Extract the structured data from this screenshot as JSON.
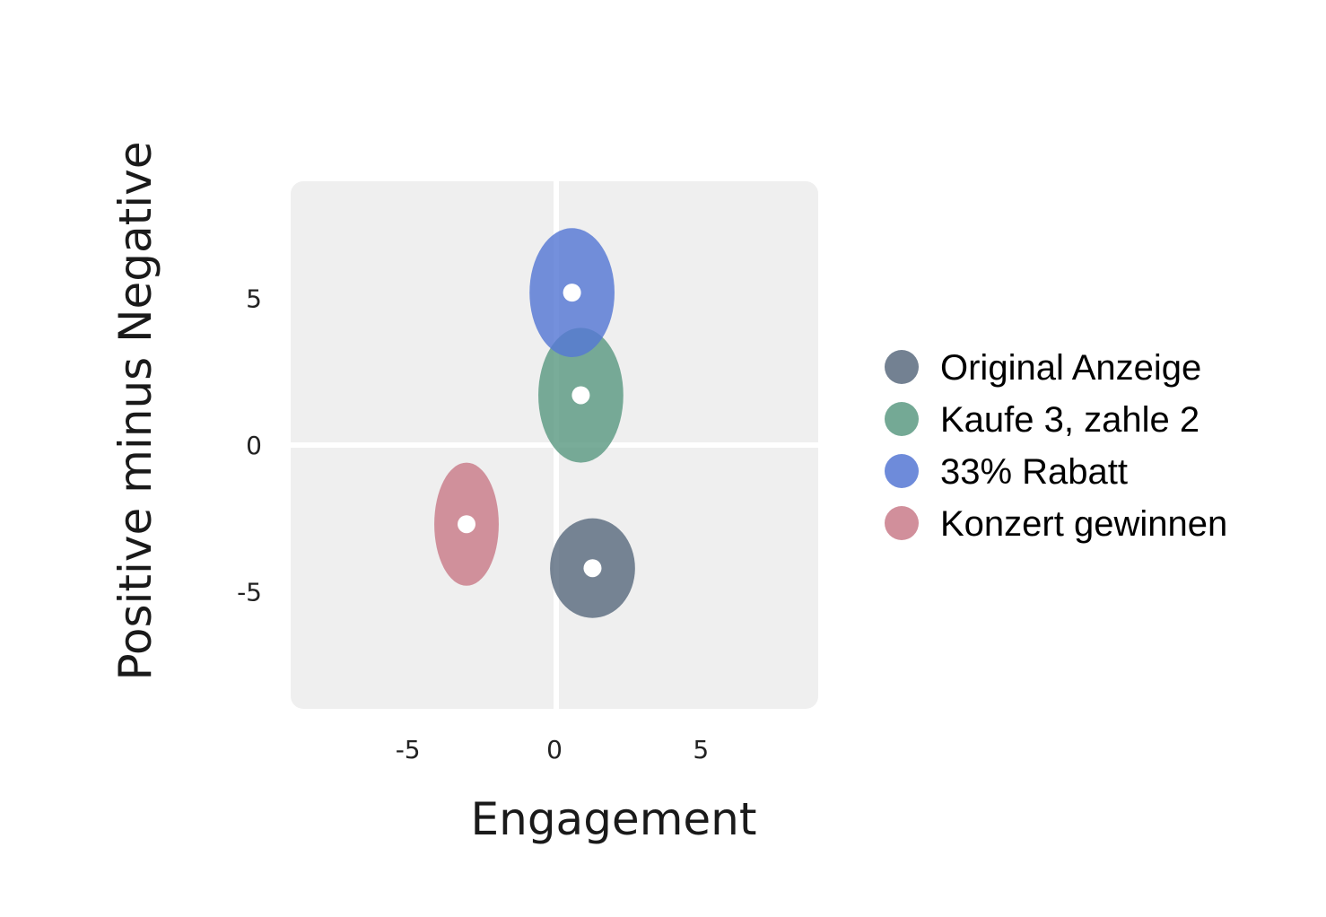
{
  "chart_data": {
    "type": "scatter",
    "xlabel": "Engagement",
    "ylabel": "Positive minus Negative",
    "xlim": [
      -9,
      9
    ],
    "ylim": [
      -9,
      9
    ],
    "xticks": [
      -5,
      0,
      5
    ],
    "yticks": [
      5,
      0,
      -5
    ],
    "grid": false,
    "zero_lines": true,
    "legend_position": "right",
    "series": [
      {
        "name": "Original Anzeige",
        "color": "#5a6b7f",
        "x": 1.3,
        "y": -4.2,
        "spread_x": 1.45,
        "spread_y": 1.7
      },
      {
        "name": "Kaufe 3, zahle 2",
        "color": "#5c9a82",
        "x": 0.9,
        "y": 1.7,
        "spread_x": 1.45,
        "spread_y": 2.3
      },
      {
        "name": "33% Rabatt",
        "color": "#5577d4",
        "x": 0.6,
        "y": 5.2,
        "spread_x": 1.45,
        "spread_y": 2.2
      },
      {
        "name": "Konzert gewinnen",
        "color": "#c97b89",
        "x": -3.0,
        "y": -2.7,
        "spread_x": 1.1,
        "spread_y": 2.1
      }
    ]
  }
}
